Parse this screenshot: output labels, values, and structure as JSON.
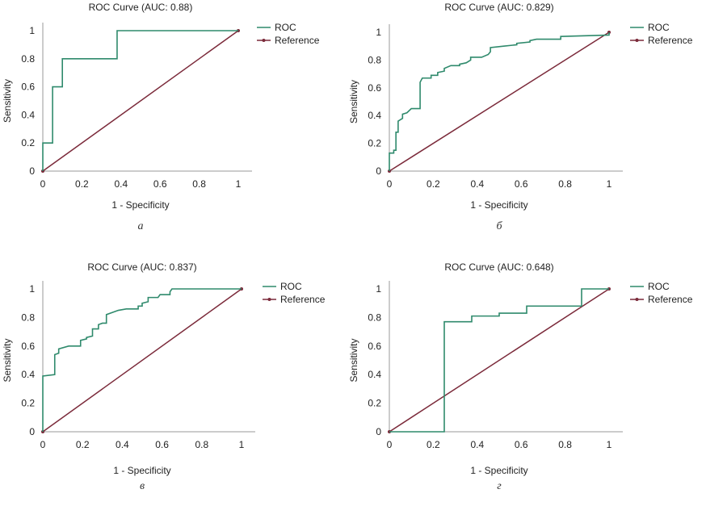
{
  "colors": {
    "roc": "#2f8a6c",
    "reference": "#7b2a3a",
    "axis": "#999999",
    "text": "#222222"
  },
  "chart_data": [
    {
      "type": "line",
      "caption": "а",
      "title": "ROC Curve (AUC: 0.88)",
      "xlabel": "1 - Specificity",
      "ylabel": "Sensitivity",
      "xlim": [
        0,
        1
      ],
      "ylim": [
        0,
        1
      ],
      "xticks": [
        "0",
        "0.2",
        "0.4",
        "0.6",
        "0.8",
        "1"
      ],
      "yticks": [
        "0",
        "0.2",
        "0.4",
        "0.6",
        "0.8",
        "1"
      ],
      "grid": false,
      "legend_position": "top-right",
      "series": [
        {
          "name": "ROC",
          "points": [
            [
              0,
              0
            ],
            [
              0,
              0.2
            ],
            [
              0.05,
              0.2
            ],
            [
              0.05,
              0.6
            ],
            [
              0.1,
              0.6
            ],
            [
              0.1,
              0.8
            ],
            [
              0.38,
              0.8
            ],
            [
              0.38,
              1
            ],
            [
              1,
              1
            ]
          ]
        },
        {
          "name": "Reference",
          "points": [
            [
              0,
              0
            ],
            [
              1,
              1
            ]
          ]
        }
      ]
    },
    {
      "type": "line",
      "caption": "б",
      "title": "ROC Curve (AUC: 0.829)",
      "xlabel": "1 - Specificity",
      "ylabel": "Sensitivity",
      "xlim": [
        0,
        1
      ],
      "ylim": [
        0,
        1
      ],
      "xticks": [
        "0",
        "0.2",
        "0.4",
        "0.6",
        "0.8",
        "1"
      ],
      "yticks": [
        "0",
        "0.2",
        "0.4",
        "0.6",
        "0.8",
        "1"
      ],
      "grid": false,
      "legend_position": "top-right",
      "series": [
        {
          "name": "ROC",
          "points": [
            [
              0,
              0
            ],
            [
              0,
              0.13
            ],
            [
              0.02,
              0.13
            ],
            [
              0.02,
              0.15
            ],
            [
              0.03,
              0.15
            ],
            [
              0.03,
              0.28
            ],
            [
              0.04,
              0.28
            ],
            [
              0.04,
              0.36
            ],
            [
              0.06,
              0.38
            ],
            [
              0.06,
              0.41
            ],
            [
              0.08,
              0.42
            ],
            [
              0.1,
              0.45
            ],
            [
              0.14,
              0.45
            ],
            [
              0.14,
              0.64
            ],
            [
              0.15,
              0.67
            ],
            [
              0.19,
              0.67
            ],
            [
              0.19,
              0.69
            ],
            [
              0.22,
              0.69
            ],
            [
              0.22,
              0.71
            ],
            [
              0.25,
              0.72
            ],
            [
              0.25,
              0.74
            ],
            [
              0.28,
              0.76
            ],
            [
              0.32,
              0.76
            ],
            [
              0.32,
              0.77
            ],
            [
              0.35,
              0.78
            ],
            [
              0.37,
              0.8
            ],
            [
              0.37,
              0.82
            ],
            [
              0.42,
              0.82
            ],
            [
              0.45,
              0.84
            ],
            [
              0.46,
              0.86
            ],
            [
              0.46,
              0.89
            ],
            [
              0.52,
              0.9
            ],
            [
              0.58,
              0.91
            ],
            [
              0.58,
              0.92
            ],
            [
              0.64,
              0.93
            ],
            [
              0.64,
              0.94
            ],
            [
              0.67,
              0.95
            ],
            [
              0.78,
              0.95
            ],
            [
              0.78,
              0.97
            ],
            [
              1,
              0.98
            ],
            [
              1,
              1
            ]
          ]
        },
        {
          "name": "Reference",
          "points": [
            [
              0,
              0
            ],
            [
              1,
              1
            ]
          ]
        }
      ]
    },
    {
      "type": "line",
      "caption": "в",
      "title": "ROC Curve (AUC: 0.837)",
      "xlabel": "1 - Specificity",
      "ylabel": "Sensitivity",
      "xlim": [
        0,
        1
      ],
      "ylim": [
        0,
        1
      ],
      "xticks": [
        "0",
        "0.2",
        "0.4",
        "0.6",
        "0.8",
        "1"
      ],
      "yticks": [
        "0",
        "0.2",
        "0.4",
        "0.6",
        "0.8",
        "1"
      ],
      "grid": false,
      "legend_position": "top-right",
      "series": [
        {
          "name": "ROC",
          "points": [
            [
              0,
              0
            ],
            [
              0,
              0.39
            ],
            [
              0.06,
              0.4
            ],
            [
              0.06,
              0.54
            ],
            [
              0.08,
              0.55
            ],
            [
              0.08,
              0.58
            ],
            [
              0.13,
              0.6
            ],
            [
              0.19,
              0.6
            ],
            [
              0.19,
              0.64
            ],
            [
              0.22,
              0.65
            ],
            [
              0.22,
              0.66
            ],
            [
              0.25,
              0.67
            ],
            [
              0.25,
              0.72
            ],
            [
              0.28,
              0.72
            ],
            [
              0.28,
              0.75
            ],
            [
              0.3,
              0.76
            ],
            [
              0.32,
              0.76
            ],
            [
              0.32,
              0.82
            ],
            [
              0.38,
              0.85
            ],
            [
              0.42,
              0.86
            ],
            [
              0.48,
              0.86
            ],
            [
              0.48,
              0.88
            ],
            [
              0.5,
              0.88
            ],
            [
              0.5,
              0.9
            ],
            [
              0.53,
              0.91
            ],
            [
              0.53,
              0.94
            ],
            [
              0.58,
              0.94
            ],
            [
              0.59,
              0.96
            ],
            [
              0.64,
              0.96
            ],
            [
              0.64,
              0.98
            ],
            [
              0.65,
              1
            ],
            [
              1,
              1
            ]
          ]
        },
        {
          "name": "Reference",
          "points": [
            [
              0,
              0
            ],
            [
              1,
              1
            ]
          ]
        }
      ]
    },
    {
      "type": "line",
      "caption": "г",
      "title": "ROC Curve (AUC: 0.648)",
      "xlabel": "1 - Specificity",
      "ylabel": "Sensitivity",
      "xlim": [
        0,
        1
      ],
      "ylim": [
        0,
        1
      ],
      "xticks": [
        "0",
        "0.2",
        "0.4",
        "0.6",
        "0.8",
        "1"
      ],
      "yticks": [
        "0",
        "0.2",
        "0.4",
        "0.6",
        "0.8",
        "1"
      ],
      "grid": false,
      "legend_position": "top-right",
      "series": [
        {
          "name": "ROC",
          "points": [
            [
              0,
              0
            ],
            [
              0.25,
              0
            ],
            [
              0.25,
              0.77
            ],
            [
              0.375,
              0.77
            ],
            [
              0.375,
              0.81
            ],
            [
              0.5,
              0.81
            ],
            [
              0.5,
              0.83
            ],
            [
              0.625,
              0.83
            ],
            [
              0.625,
              0.88
            ],
            [
              0.875,
              0.88
            ],
            [
              0.875,
              1
            ],
            [
              1,
              1
            ]
          ]
        },
        {
          "name": "Reference",
          "points": [
            [
              0,
              0
            ],
            [
              1,
              1
            ]
          ]
        }
      ]
    }
  ]
}
